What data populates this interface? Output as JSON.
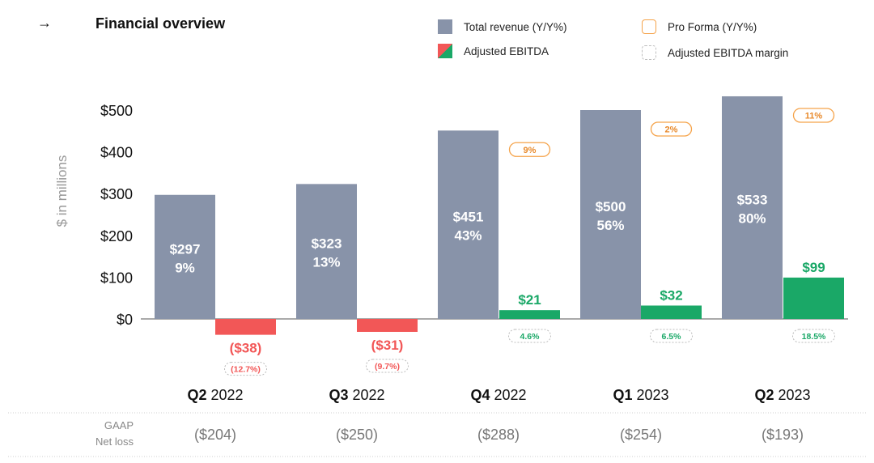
{
  "header": {
    "arrow_icon": "right-arrow-icon",
    "title": "Financial overview"
  },
  "legend": [
    {
      "label": "Total revenue (Y/Y%)",
      "swatch": "revenue",
      "color": "#8893a9"
    },
    {
      "label": "Adjusted EBITDA",
      "swatch": "ebitda",
      "colors": [
        "#f25757",
        "#1aa867"
      ]
    },
    {
      "label": "Pro Forma (Y/Y%)",
      "swatch": "pro_forma",
      "color": "#f5a34a"
    },
    {
      "label": "Adjusted EBITDA margin",
      "swatch": "margin",
      "color": "#bfbfbf"
    }
  ],
  "chart_data": {
    "type": "bar",
    "ylabel": "$ in millions",
    "ylim": [
      0,
      500
    ],
    "yticks": [
      "$0",
      "$100",
      "$200",
      "$300",
      "$400",
      "$500"
    ],
    "categories": [
      {
        "bold": "Q2",
        "rest": "2022"
      },
      {
        "bold": "Q3",
        "rest": "2022"
      },
      {
        "bold": "Q4",
        "rest": "2022"
      },
      {
        "bold": "Q1",
        "rest": "2023"
      },
      {
        "bold": "Q2",
        "rest": "2023"
      }
    ],
    "series": [
      {
        "name": "Total revenue (Y/Y%)",
        "color": "#8893a9",
        "values": [
          297,
          323,
          451,
          500,
          533
        ],
        "labels": [
          "$297",
          "$323",
          "$451",
          "$500",
          "$533"
        ],
        "yoy": [
          "9%",
          "13%",
          "43%",
          "56%",
          "80%"
        ]
      },
      {
        "name": "Adjusted EBITDA",
        "positive_color": "#1aa867",
        "negative_color": "#f25757",
        "values": [
          -38,
          -31,
          21,
          32,
          99
        ],
        "labels": [
          "($38)",
          "($31)",
          "$21",
          "$32",
          "$99"
        ],
        "margin": [
          "(12.7%)",
          "(9.7%)",
          "4.6%",
          "6.5%",
          "18.5%"
        ]
      }
    ],
    "pro_forma": [
      "",
      "",
      "9%",
      "2%",
      "11%"
    ],
    "gaap_label": [
      "GAAP",
      "Net loss"
    ],
    "gaap_net_loss": [
      "($204)",
      "($250)",
      "($288)",
      "($254)",
      "($193)"
    ]
  }
}
